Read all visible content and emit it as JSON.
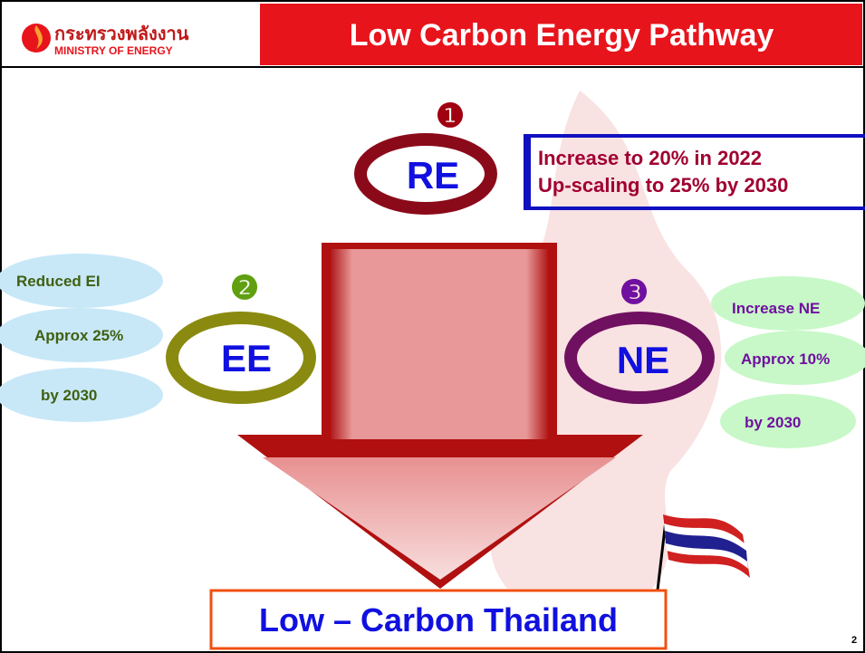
{
  "header": {
    "logo_thai": "กระทรวงพลังงาน",
    "logo_english": "MINISTRY OF ENERGY",
    "title": "Low Carbon Energy Pathway"
  },
  "re": {
    "number": "❶",
    "label": "RE",
    "lines": [
      "Increase to 20% in 2022",
      "Up-scaling to 25% by 2030"
    ]
  },
  "ee": {
    "number": "❷",
    "label": "EE",
    "notes": [
      "Reduced EI",
      "Approx 25%",
      "by 2030"
    ]
  },
  "ne": {
    "number": "❸",
    "label": "NE",
    "notes": [
      "Increase NE",
      "Approx 10%",
      "by 2030"
    ]
  },
  "goal": "Low – Carbon Thailand",
  "page_number": "2"
}
